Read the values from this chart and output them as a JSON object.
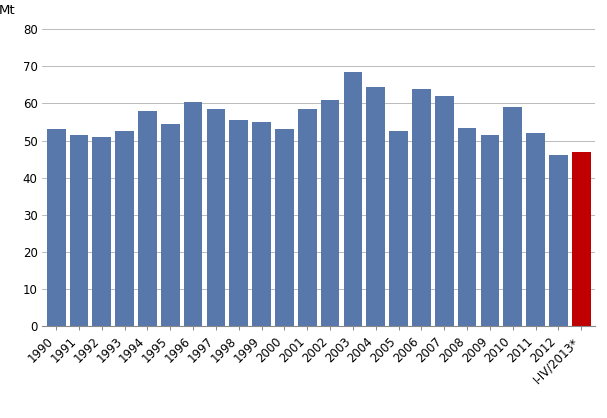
{
  "categories": [
    "1990",
    "1991",
    "1992",
    "1993",
    "1994",
    "1995",
    "1996",
    "1997",
    "1998",
    "1999",
    "2000",
    "2001",
    "2002",
    "2003",
    "2004",
    "2005",
    "2006",
    "2007",
    "2008",
    "2009",
    "2010",
    "2011",
    "2012",
    "I-IV/2013*"
  ],
  "values": [
    53,
    51.5,
    51,
    52.5,
    58,
    54.5,
    60.5,
    58.5,
    55.5,
    55,
    53,
    58.5,
    61,
    68.5,
    64.5,
    52.5,
    64,
    62,
    53.5,
    51.5,
    59,
    52,
    46,
    47
  ],
  "bar_colors": [
    "#5878ac",
    "#5878ac",
    "#5878ac",
    "#5878ac",
    "#5878ac",
    "#5878ac",
    "#5878ac",
    "#5878ac",
    "#5878ac",
    "#5878ac",
    "#5878ac",
    "#5878ac",
    "#5878ac",
    "#5878ac",
    "#5878ac",
    "#5878ac",
    "#5878ac",
    "#5878ac",
    "#5878ac",
    "#5878ac",
    "#5878ac",
    "#5878ac",
    "#5878ac",
    "#c00000"
  ],
  "top_label": "Mt",
  "ylim": [
    0,
    80
  ],
  "yticks": [
    0,
    10,
    20,
    30,
    40,
    50,
    60,
    70,
    80
  ],
  "background_color": "#ffffff",
  "grid_color": "#b0b0b0",
  "tick_fontsize": 8.5,
  "label_fontsize": 9.5
}
